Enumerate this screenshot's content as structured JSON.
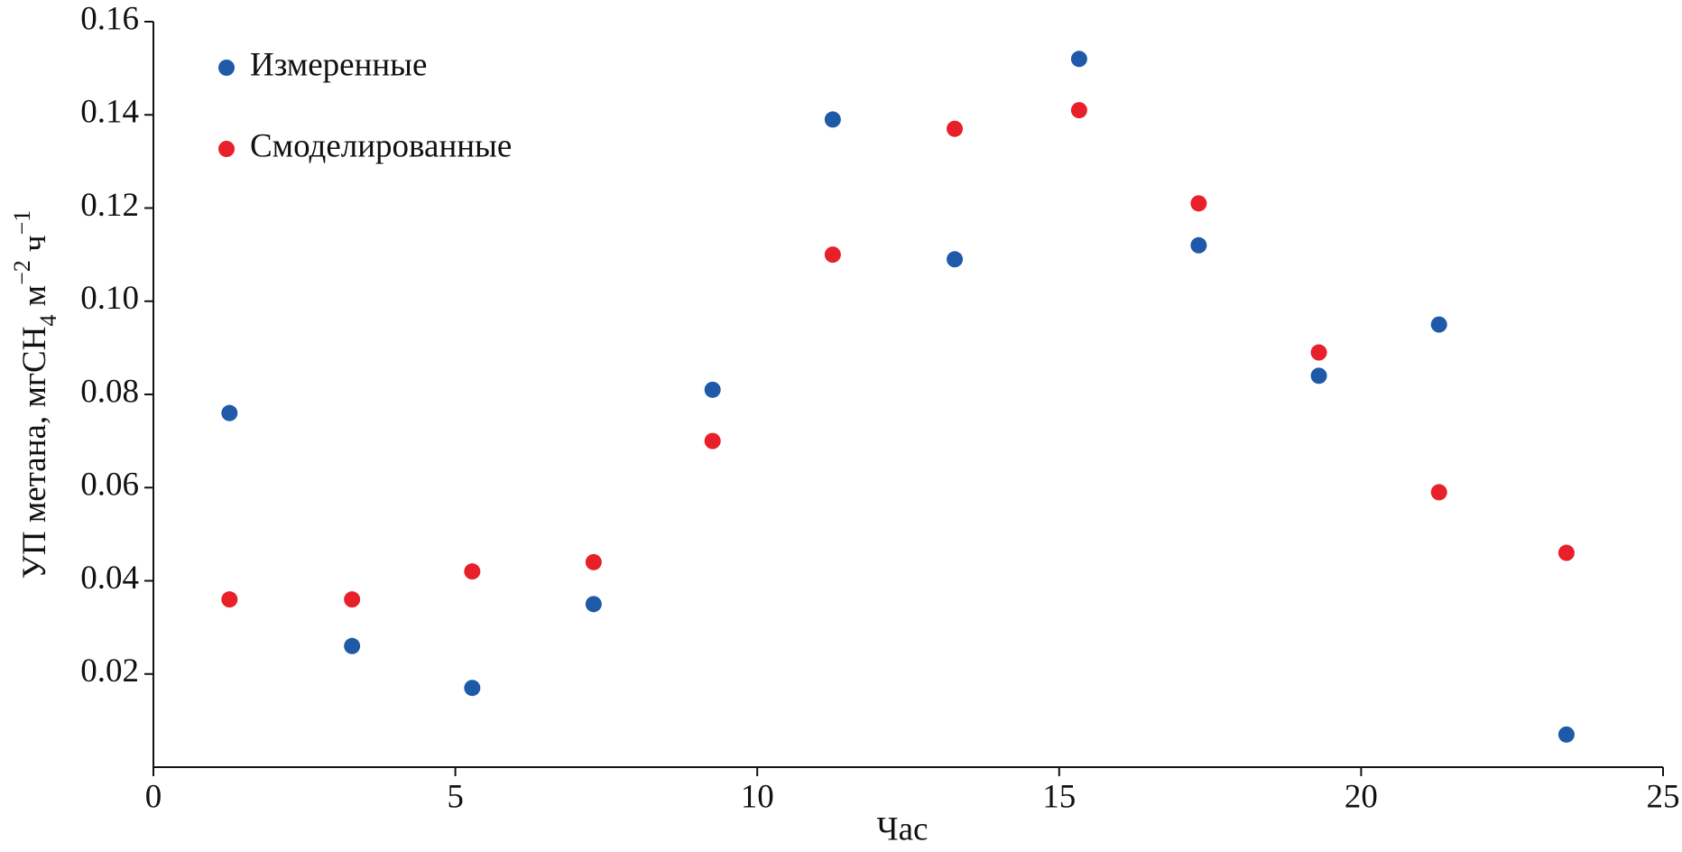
{
  "chart_data": {
    "type": "scatter",
    "xlabel": "Час",
    "ylabel": [
      "УП метана, мгСН",
      "4",
      " м",
      "−2",
      " ч",
      "−1"
    ],
    "xlim": [
      0,
      25
    ],
    "xticks": [
      0,
      5,
      10,
      15,
      20,
      25
    ],
    "ylim": [
      0,
      0.16
    ],
    "yticks": [
      0.02,
      0.04,
      0.06,
      0.08,
      {
        "value": 0.1,
        "label": "0.10"
      },
      0.12,
      0.14,
      0.16
    ],
    "grid": false,
    "legend": "upper left",
    "series": [
      {
        "name": "Измеренные",
        "color": "#1f5aa8",
        "x": [
          1.26,
          3.29,
          5.28,
          7.29,
          9.26,
          11.25,
          13.27,
          15.33,
          17.31,
          19.3,
          21.29,
          23.4
        ],
        "values": [
          0.076,
          0.026,
          0.017,
          0.035,
          0.081,
          0.139,
          0.109,
          0.152,
          0.112,
          0.084,
          0.095,
          0.007
        ]
      },
      {
        "name": "Смоделированные",
        "color": "#e8202a",
        "x": [
          1.26,
          3.29,
          5.28,
          7.29,
          9.26,
          11.25,
          13.27,
          15.33,
          17.31,
          19.3,
          21.29,
          23.4
        ],
        "values": [
          0.036,
          0.036,
          0.042,
          0.044,
          0.07,
          0.11,
          0.137,
          0.141,
          0.121,
          0.089,
          0.059,
          0.046
        ]
      }
    ]
  }
}
